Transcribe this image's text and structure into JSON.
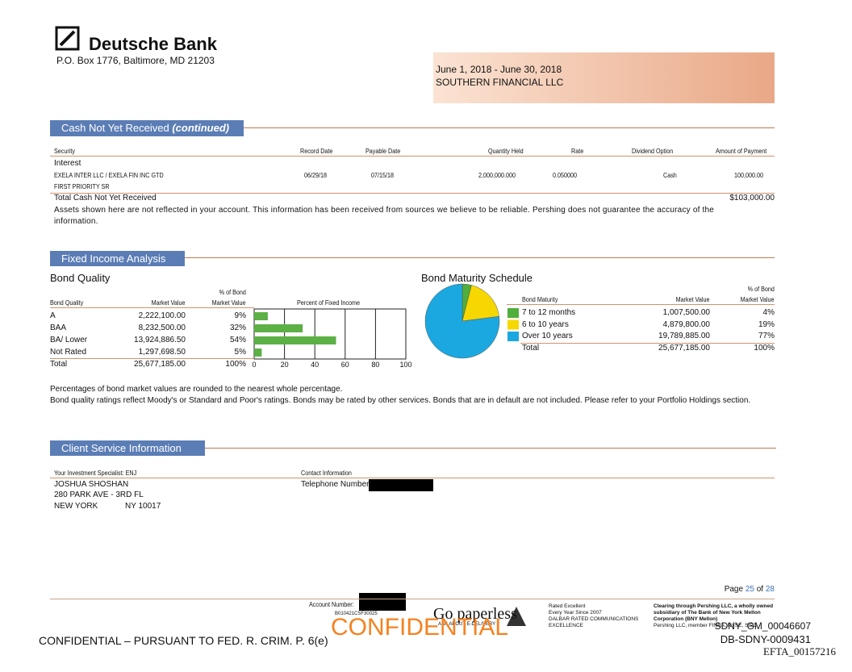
{
  "header": {
    "bank": "Deutsche Bank",
    "address": "P.O. Box 1776, Baltimore, MD 21203",
    "period": "June 1, 2018 - June 30, 2018",
    "client": "SOUTHERN FINANCIAL LLC"
  },
  "cash": {
    "title": "Cash Not Yet Received",
    "title_em": "(continued)",
    "columns": [
      "Security",
      "Record Date",
      "Payable Date",
      "Quantity Held",
      "Rate",
      "Dividend Option",
      "Amount of Payment"
    ],
    "group": "Interest",
    "row": [
      "EXELA INTER LLC / EXELA FIN INC GTD",
      "06/29/18",
      "07/15/18",
      "2,000,000.000",
      "0.050000",
      "Cash",
      "100,000.00"
    ],
    "row_sub": "FIRST PRIORITY SR",
    "total_label": "Total Cash Not Yet Received",
    "total": "$103,000.00",
    "note": "Assets shown here are not reflected in your account. This information has been received from sources we believe to be reliable. Pershing does not guarantee the accuracy of the information."
  },
  "fixed_income": {
    "title": "Fixed Income Analysis",
    "bond_quality": {
      "title": "Bond Quality",
      "columns": [
        "Bond Quality",
        "Market Value",
        "% of Bond",
        "Market Value",
        "Percent of Fixed Income"
      ],
      "rows": [
        {
          "rating": "A",
          "market_value": "2,222,100.00",
          "pct": 9,
          "pct_label": "9%"
        },
        {
          "rating": "BAA",
          "market_value": "8,232,500.00",
          "pct": 32,
          "pct_label": "32%"
        },
        {
          "rating": "BA/ Lower",
          "market_value": "13,924,886.50",
          "pct": 54,
          "pct_label": "54%"
        },
        {
          "rating": "Not Rated",
          "market_value": "1,297,698.50",
          "pct": 5,
          "pct_label": "5%"
        }
      ],
      "total": {
        "label": "Total",
        "market_value": "25,677,185.00",
        "pct_label": "100%"
      },
      "xlim": [
        0,
        100
      ],
      "xticks": [
        0,
        20,
        40,
        60,
        80,
        100
      ],
      "color": "#5cb046"
    },
    "maturity": {
      "title": "Bond Maturity Schedule",
      "columns": [
        "Bond Maturity",
        "Market Value",
        "% of Bond",
        "Market Value"
      ],
      "rows": [
        {
          "name": "7 to 12 months",
          "market_value": "1,007,500.00",
          "pct": 4,
          "pct_label": "4%",
          "color": "#4fae3c"
        },
        {
          "name": "6 to 10 years",
          "market_value": "4,879,800.00",
          "pct": 19,
          "pct_label": "19%",
          "color": "#f6d800"
        },
        {
          "name": "Over 10 years",
          "market_value": "19,789,885.00",
          "pct": 77,
          "pct_label": "77%",
          "color": "#1ba8e0"
        }
      ],
      "total": {
        "label": "Total",
        "market_value": "25,677,185.00",
        "pct_label": "100%"
      }
    },
    "notes": [
      "Percentages of bond market values are rounded to the nearest whole percentage.",
      "Bond quality ratings reflect Moody's or Standard and Poor's ratings.  Bonds may be rated by other services. Bonds that are in default are not included.  Please refer to your Portfolio Holdings section."
    ]
  },
  "client_service": {
    "title": "Client Service Information",
    "specialist": "Your Investment Specialist: ENJ",
    "contact": "Contact Information",
    "name": "JOSHUA SHOSHAN",
    "street": "280 PARK AVE - 3RD FL",
    "city": "NEW YORK",
    "state_zip": "NY 10017",
    "telephone": "Telephone Number:"
  },
  "footer": {
    "page": [
      "Page",
      "25",
      "of",
      "28"
    ],
    "account": "Account Number:",
    "code": "B010421CSF30025",
    "paperless": "Go paperless",
    "edelivery": "ASK ABOUT E-DELIVERY",
    "rated": [
      "Rated Excellent",
      "Every Year Since 2007",
      "DALBAR RATED COMMUNICATIONS",
      "EXCELLENCE"
    ],
    "clearing": [
      "Clearing through Pershing LLC, a wholly owned",
      "subsidiary of The Bank of New York Mellon",
      "Corporation (BNY Mellon)",
      "Pershing LLC, member FINRA, NYSE, SIPC"
    ],
    "stamp": "CONFIDENTIAL",
    "confidential": "CONFIDENTIAL – PURSUANT TO FED. R. CRIM. P. 6(e)",
    "sdny": "SDNY_GM_00046607",
    "db": "DB-SDNY-0009431",
    "efta": "EFTA_00157216"
  }
}
